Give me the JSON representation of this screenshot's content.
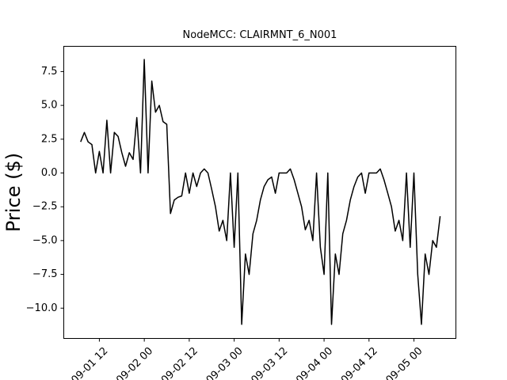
{
  "chart_data": {
    "type": "line",
    "title": "NodeMCC: CLAIRMNT_6_N001",
    "y_label": "Price ($)",
    "x": [
      "09-01 07",
      "09-01 08",
      "09-01 09",
      "09-01 10",
      "09-01 11",
      "09-01 12",
      "09-01 13",
      "09-01 14",
      "09-01 15",
      "09-01 16",
      "09-01 17",
      "09-01 18",
      "09-01 19",
      "09-01 20",
      "09-01 21",
      "09-01 22",
      "09-01 23",
      "09-02 00",
      "09-02 01",
      "09-02 02",
      "09-02 03",
      "09-02 04",
      "09-02 05",
      "09-02 06",
      "09-02 07",
      "09-02 08",
      "09-02 09",
      "09-02 10",
      "09-02 11",
      "09-02 12",
      "09-02 13",
      "09-02 14",
      "09-02 15",
      "09-02 16",
      "09-02 17",
      "09-02 18",
      "09-02 19",
      "09-02 20",
      "09-02 21",
      "09-02 22",
      "09-02 23",
      "09-03 00",
      "09-03 01",
      "09-03 02",
      "09-03 03",
      "09-03 04",
      "09-03 05",
      "09-03 06",
      "09-03 07",
      "09-03 08",
      "09-03 09",
      "09-03 10",
      "09-03 11",
      "09-03 12",
      "09-03 13",
      "09-03 14",
      "09-03 15",
      "09-03 16",
      "09-03 17",
      "09-03 18",
      "09-03 19",
      "09-03 20",
      "09-03 21",
      "09-03 22",
      "09-03 23",
      "09-04 00",
      "09-04 01",
      "09-04 02",
      "09-04 03",
      "09-04 04",
      "09-04 05",
      "09-04 06",
      "09-04 07",
      "09-04 08",
      "09-04 09",
      "09-04 10",
      "09-04 11",
      "09-04 12",
      "09-04 13",
      "09-04 14",
      "09-04 15",
      "09-04 16",
      "09-04 17",
      "09-04 18",
      "09-04 19",
      "09-04 20",
      "09-04 21",
      "09-04 22",
      "09-04 23",
      "09-05 00",
      "09-05 01",
      "09-05 02",
      "09-05 03",
      "09-05 04",
      "09-05 05",
      "09-05 06",
      "09-05 07"
    ],
    "series": [
      {
        "color": "#000000",
        "values": [
          2.3,
          3.0,
          2.3,
          2.1,
          0.0,
          1.6,
          0.0,
          3.9,
          0.0,
          3.0,
          2.7,
          1.5,
          0.5,
          1.5,
          1.0,
          4.1,
          0.0,
          8.4,
          0.0,
          6.8,
          4.5,
          5.0,
          3.8,
          3.6,
          -3.0,
          -2.0,
          -1.8,
          -1.7,
          0.0,
          -1.5,
          0.0,
          -1.0,
          0.0,
          0.3,
          0.0,
          -1.2,
          -2.5,
          -4.3,
          -3.5,
          -5.0,
          0.0,
          -5.5,
          0.0,
          -11.2,
          -6.0,
          -7.5,
          -4.5,
          -3.5,
          -2.0,
          -1.0,
          -0.5,
          -0.3,
          -1.5,
          0.0,
          0.0,
          0.0,
          0.3,
          -0.5,
          -1.5,
          -2.5,
          -4.2,
          -3.5,
          -5.0,
          0.0,
          -5.5,
          -7.5,
          0.0,
          -11.2,
          -6.0,
          -7.5,
          -4.5,
          -3.5,
          -2.0,
          -1.0,
          -0.3,
          0.0,
          -1.5,
          0.0,
          0.0,
          0.0,
          0.3,
          -0.5,
          -1.5,
          -2.5,
          -4.3,
          -3.5,
          -5.0,
          0.0,
          -5.5,
          0.0,
          -7.5,
          -11.2,
          -6.0,
          -7.5,
          -5.0,
          -5.5,
          -3.2
        ]
      }
    ],
    "xlim": [
      "09-01 02:30",
      "09-05 11:12"
    ],
    "xticks": [
      "09-01 12",
      "09-02 00",
      "09-02 12",
      "09-03 00",
      "09-03 12",
      "09-04 00",
      "09-04 12",
      "09-05 00"
    ],
    "ylim": [
      -12.24,
      9.37
    ],
    "yticks": [
      {
        "value": -10,
        "label": "−10.0"
      },
      {
        "value": -7.5,
        "label": "−7.5"
      },
      {
        "value": -5,
        "label": "−5.0"
      },
      {
        "value": -2.5,
        "label": "−2.5"
      },
      {
        "value": 0,
        "label": "0.0"
      },
      2.5,
      {
        "value": 5,
        "label": "5.0"
      },
      7.5
    ]
  }
}
